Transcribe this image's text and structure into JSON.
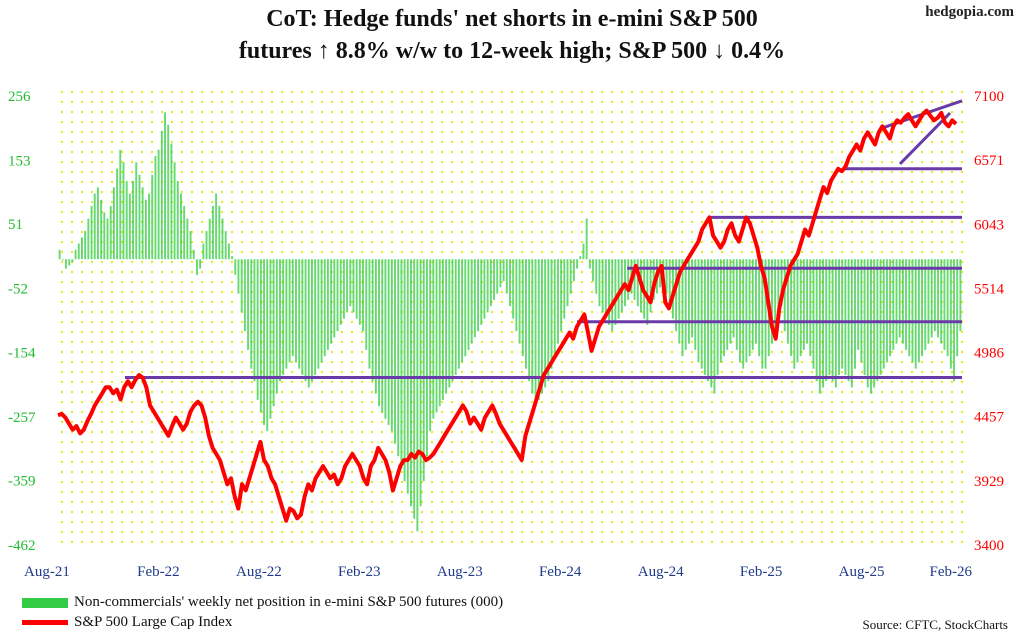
{
  "site": "hedgopia.com",
  "source": "Source: CFTC, StockCharts",
  "chart_data": {
    "type": "bar+line",
    "title_line1": "CoT: Hedge funds' net shorts in e-mini S&P 500",
    "title_line2": "futures ↑ 8.8% w/w to 12-week high; S&P 500 ↓ 0.4%",
    "x_ticks": [
      "Aug-21",
      "Feb-22",
      "Aug-22",
      "Feb-23",
      "Aug-23",
      "Feb-24",
      "Aug-24",
      "Feb-25",
      "Aug-25",
      "Feb-26"
    ],
    "y_left_ticks": [
      256,
      153,
      51,
      -52,
      -154,
      -257,
      -359,
      -462
    ],
    "y_right_ticks": [
      7100,
      6571,
      6043,
      5514,
      4986,
      4457,
      3929,
      3400
    ],
    "y_left_range": [
      -462,
      256
    ],
    "y_right_range": [
      3400,
      7100
    ],
    "grid": "yellow dotted background",
    "legend_position": "bottom-left",
    "colors": {
      "bars": "#33cc44",
      "line": "#ff0000",
      "trend": "#6a3aa8",
      "left_axis": "#22bb33",
      "right_axis": "#ff0000",
      "x_axis": "#1f3a8a"
    },
    "series": [
      {
        "name": "Non-commercials' weekly net position in e-mini S&P 500 futures (000)",
        "kind": "bar",
        "x_start": "Aug-21",
        "values": [
          10,
          -5,
          -20,
          -15,
          -10,
          10,
          20,
          30,
          40,
          60,
          80,
          100,
          110,
          90,
          70,
          60,
          80,
          110,
          140,
          170,
          150,
          120,
          100,
          120,
          150,
          130,
          110,
          90,
          100,
          130,
          160,
          170,
          200,
          230,
          210,
          180,
          150,
          120,
          100,
          80,
          60,
          40,
          10,
          -30,
          -20,
          20,
          40,
          60,
          80,
          100,
          80,
          60,
          40,
          20,
          0,
          -30,
          -60,
          -90,
          -120,
          -150,
          -180,
          -200,
          -230,
          -250,
          -270,
          -280,
          -260,
          -240,
          -220,
          -200,
          -190,
          -180,
          -170,
          -160,
          -170,
          -180,
          -190,
          -200,
          -210,
          -200,
          -190,
          -180,
          -170,
          -160,
          -150,
          -140,
          -130,
          -120,
          -110,
          -100,
          -90,
          -80,
          -90,
          -100,
          -110,
          -120,
          -150,
          -180,
          -200,
          -220,
          -240,
          -250,
          -260,
          -270,
          -280,
          -300,
          -320,
          -340,
          -360,
          -380,
          -400,
          -420,
          -440,
          -400,
          -360,
          -320,
          -280,
          -260,
          -250,
          -240,
          -230,
          -220,
          -210,
          -200,
          -190,
          -180,
          -170,
          -160,
          -150,
          -140,
          -130,
          -120,
          -110,
          -100,
          -90,
          -80,
          -70,
          -60,
          -50,
          -40,
          -60,
          -80,
          -100,
          -120,
          -140,
          -160,
          -180,
          -200,
          -220,
          -240,
          -230,
          -220,
          -210,
          -200,
          -180,
          -160,
          -140,
          -120,
          -100,
          -80,
          -60,
          -40,
          -20,
          0,
          20,
          60,
          -20,
          -40,
          -60,
          -80,
          -90,
          -100,
          -110,
          -120,
          -110,
          -100,
          -90,
          -80,
          -70,
          -60,
          -70,
          -80,
          -90,
          -100,
          -110,
          -90,
          -70,
          -60,
          -50,
          -40,
          -60,
          -80,
          -100,
          -120,
          -140,
          -160,
          -150,
          -140,
          -130,
          -150,
          -170,
          -180,
          -190,
          -200,
          -210,
          -220,
          -190,
          -170,
          -160,
          -150,
          -140,
          -130,
          -150,
          -170,
          -180,
          -170,
          -160,
          -150,
          -140,
          -160,
          -180,
          -180,
          -160,
          -140,
          -120,
          -100,
          -80,
          -120,
          -140,
          -160,
          -180,
          -170,
          -160,
          -150,
          -140,
          -160,
          -180,
          -200,
          -220,
          -210,
          -200,
          -190,
          -200,
          -210,
          -190,
          -180,
          -190,
          -200,
          -210,
          -180,
          -150,
          -170,
          -190,
          -210,
          -220,
          -210,
          -200,
          -190,
          -180,
          -170,
          -160,
          -150,
          -140,
          -130,
          -140,
          -150,
          -160,
          -170,
          -180,
          -170,
          -160,
          -150,
          -140,
          -130,
          -120,
          -130,
          -140,
          -150,
          -160,
          -180,
          -200,
          -160,
          -120
        ]
      },
      {
        "name": "S&P 500 Large Cap Index",
        "kind": "line",
        "x_start": "Aug-21",
        "values": [
          4470,
          4480,
          4450,
          4400,
          4350,
          4380,
          4320,
          4350,
          4420,
          4480,
          4550,
          4600,
          4650,
          4700,
          4700,
          4650,
          4680,
          4600,
          4700,
          4750,
          4700,
          4760,
          4800,
          4780,
          4700,
          4550,
          4500,
          4450,
          4400,
          4350,
          4300,
          4380,
          4450,
          4400,
          4350,
          4400,
          4500,
          4550,
          4580,
          4550,
          4450,
          4300,
          4200,
          4150,
          4100,
          4000,
          3900,
          3950,
          3800,
          3700,
          3900,
          3850,
          3950,
          4050,
          4150,
          4250,
          4100,
          4050,
          3950,
          3900,
          3800,
          3700,
          3600,
          3700,
          3680,
          3620,
          3650,
          3800,
          3900,
          3850,
          3950,
          4000,
          4050,
          4000,
          3950,
          3980,
          3900,
          3950,
          4050,
          4100,
          4150,
          4100,
          4050,
          3950,
          3900,
          4050,
          4100,
          4200,
          4150,
          4100,
          4000,
          3850,
          3950,
          4050,
          4100,
          4100,
          4150,
          4120,
          4170,
          4150,
          4100,
          4120,
          4150,
          4200,
          4250,
          4300,
          4350,
          4400,
          4450,
          4500,
          4550,
          4500,
          4400,
          4450,
          4400,
          4350,
          4450,
          4500,
          4550,
          4480,
          4400,
          4350,
          4300,
          4250,
          4200,
          4150,
          4100,
          4300,
          4400,
          4500,
          4600,
          4700,
          4800,
          4850,
          4900,
          4950,
          5000,
          5050,
          5100,
          5150,
          5100,
          5200,
          5250,
          5300,
          5150,
          5000,
          5100,
          5200,
          5250,
          5300,
          5350,
          5400,
          5450,
          5500,
          5550,
          5500,
          5600,
          5700,
          5600,
          5500,
          5450,
          5400,
          5550,
          5650,
          5700,
          5400,
          5350,
          5450,
          5550,
          5650,
          5700,
          5750,
          5800,
          5850,
          5900,
          6000,
          6050,
          6100,
          5950,
          5900,
          5850,
          5900,
          6000,
          6050,
          5950,
          5900,
          6000,
          6100,
          6050,
          5950,
          5850,
          5700,
          5600,
          5400,
          5200,
          5100,
          5350,
          5500,
          5600,
          5700,
          5750,
          5800,
          5900,
          6000,
          5950,
          6050,
          6150,
          6250,
          6350,
          6300,
          6400,
          6450,
          6500,
          6480,
          6520,
          6600,
          6650,
          6700,
          6650,
          6750,
          6800,
          6750,
          6700,
          6800,
          6850,
          6800,
          6750,
          6850,
          6900,
          6880,
          6920,
          6950,
          6900,
          6850,
          6900,
          6950,
          6980,
          6940,
          6900,
          6920,
          6960,
          6880,
          6850,
          6900,
          6870
        ]
      }
    ],
    "trend_lines": [
      {
        "from": [
          "Dec-21",
          4780
        ],
        "to": [
          "Feb-26",
          4780
        ]
      },
      {
        "from": [
          "Mar-24",
          5240
        ],
        "to": [
          "Feb-26",
          5240
        ]
      },
      {
        "from": [
          "Jun-24",
          5680
        ],
        "to": [
          "Feb-26",
          5680
        ]
      },
      {
        "from": [
          "Nov-24",
          6100
        ],
        "to": [
          "Feb-26",
          6100
        ]
      },
      {
        "from": [
          "Jul-25",
          6500
        ],
        "to": [
          "Feb-26",
          6500
        ]
      }
    ]
  }
}
